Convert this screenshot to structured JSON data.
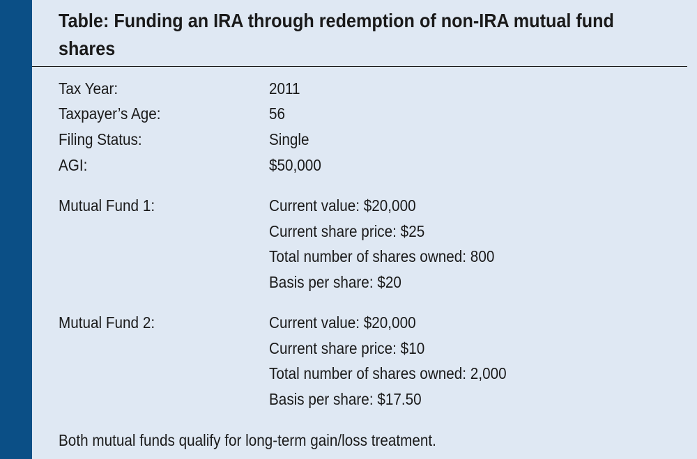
{
  "table": {
    "title": "Table: Funding an IRA through redemption of non-IRA mutual fund shares",
    "taxpayer": [
      {
        "label": "Tax Year:",
        "value": "2011"
      },
      {
        "label": "Taxpayer’s Age:",
        "value": "56"
      },
      {
        "label": "Filing Status:",
        "value": "Single"
      },
      {
        "label": "AGI:",
        "value": "$50,000"
      }
    ],
    "fund1": {
      "label": "Mutual Fund 1:",
      "details": [
        "Current value: $20,000",
        "Current share price: $25",
        "Total number of shares owned: 800",
        "Basis per share: $20"
      ]
    },
    "fund2": {
      "label": "Mutual Fund 2:",
      "details": [
        "Current value: $20,000",
        "Current share price: $10",
        "Total number of shares owned: 2,000",
        "Basis per share: $17.50"
      ]
    },
    "footnote": "Both mutual funds qualify for long-term gain/loss treatment."
  },
  "colors": {
    "sidebar": "#0b4f86",
    "background": "#dfe8f3",
    "text": "#1a1a1a"
  }
}
